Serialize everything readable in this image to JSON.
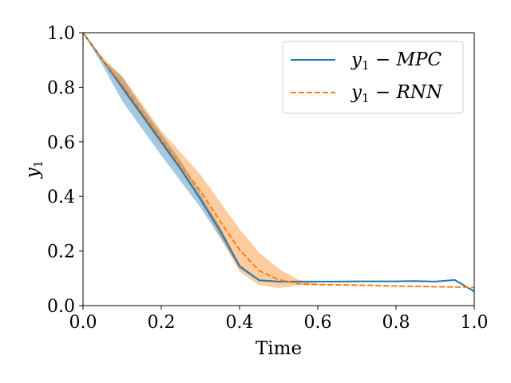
{
  "chart_data": {
    "type": "line",
    "title": "",
    "xlabel": "Time",
    "ylabel": "y1",
    "ylabel_main": "y",
    "ylabel_sub": "1",
    "xlim": [
      0.0,
      1.0
    ],
    "ylim": [
      0.0,
      1.0
    ],
    "xticks": [
      0.0,
      0.2,
      0.4,
      0.6,
      0.8,
      1.0
    ],
    "xtick_labels": [
      "0.0",
      "0.2",
      "0.4",
      "0.6",
      "0.8",
      "1.0"
    ],
    "yticks": [
      0.0,
      0.2,
      0.4,
      0.6,
      0.8,
      1.0
    ],
    "ytick_labels": [
      "0.0",
      "0.2",
      "0.4",
      "0.6",
      "0.8",
      "1.0"
    ],
    "grid": false,
    "legend_position": "top-right",
    "series": [
      {
        "name": "y1 − MPC",
        "legend_main": "y",
        "legend_sub": "1",
        "legend_rest": " − MPC",
        "color": "#1f77b4",
        "style": "solid",
        "x": [
          0.0,
          0.05,
          0.1,
          0.15,
          0.2,
          0.25,
          0.3,
          0.35,
          0.4,
          0.45,
          0.5,
          0.55,
          0.6,
          0.65,
          0.7,
          0.75,
          0.8,
          0.85,
          0.9,
          0.95,
          1.0
        ],
        "values": [
          1.0,
          0.9,
          0.8,
          0.7,
          0.6,
          0.5,
          0.39,
          0.275,
          0.145,
          0.093,
          0.088,
          0.088,
          0.088,
          0.088,
          0.089,
          0.089,
          0.089,
          0.09,
          0.088,
          0.094,
          0.052
        ],
        "band_low": [
          1.0,
          0.88,
          0.75,
          0.65,
          0.55,
          0.455,
          0.36,
          0.25,
          0.135,
          0.09,
          0.087,
          0.087,
          0.087,
          0.087,
          0.088,
          0.088,
          0.088,
          0.089,
          0.087,
          0.092,
          0.052
        ],
        "band_high": [
          1.0,
          0.9,
          0.84,
          0.73,
          0.63,
          0.53,
          0.41,
          0.29,
          0.15,
          0.095,
          0.089,
          0.089,
          0.089,
          0.089,
          0.09,
          0.09,
          0.09,
          0.091,
          0.089,
          0.096,
          0.052
        ]
      },
      {
        "name": "y1 − RNN",
        "legend_main": "y",
        "legend_sub": "1",
        "legend_rest": " − RNN",
        "color": "#ff7f0e",
        "style": "dashed",
        "x": [
          0.0,
          0.05,
          0.1,
          0.15,
          0.2,
          0.25,
          0.3,
          0.35,
          0.4,
          0.45,
          0.5,
          0.55,
          0.6,
          0.65,
          0.7,
          0.75,
          0.8,
          0.85,
          0.9,
          0.95,
          1.0
        ],
        "values": [
          1.0,
          0.9,
          0.81,
          0.71,
          0.61,
          0.515,
          0.42,
          0.31,
          0.205,
          0.128,
          0.095,
          0.08,
          0.077,
          0.076,
          0.075,
          0.074,
          0.072,
          0.071,
          0.069,
          0.068,
          0.066
        ],
        "band_low": [
          1.0,
          0.9,
          0.79,
          0.69,
          0.59,
          0.49,
          0.385,
          0.255,
          0.125,
          0.075,
          0.065,
          0.074,
          0.076,
          0.075,
          0.074,
          0.073,
          0.071,
          0.07,
          0.068,
          0.067,
          0.066
        ],
        "band_high": [
          1.0,
          0.91,
          0.84,
          0.74,
          0.64,
          0.56,
          0.48,
          0.38,
          0.28,
          0.195,
          0.135,
          0.095,
          0.08,
          0.077,
          0.076,
          0.075,
          0.073,
          0.072,
          0.07,
          0.069,
          0.067
        ]
      }
    ]
  }
}
